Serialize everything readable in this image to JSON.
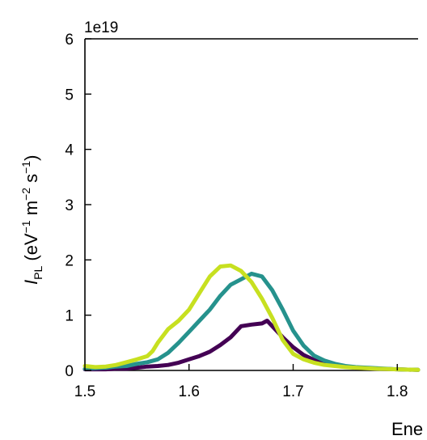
{
  "chart_data": {
    "type": "line",
    "title": "",
    "xlabel": "Ene",
    "ylabel": {
      "symbol": "I",
      "symbol_sub": "PL",
      "text": " (eV",
      "exp1": "−1",
      "mid": " m",
      "exp2": "−2",
      "end": " s",
      "exp3": "−1",
      "close": ")"
    },
    "y_offset_label": "1e19",
    "xlim": [
      1.5,
      1.82
    ],
    "ylim": [
      0,
      6
    ],
    "x_ticks": [
      1.5,
      1.6,
      1.7,
      1.8
    ],
    "x_tick_labels": [
      "1.5",
      "1.6",
      "1.7",
      "1.8"
    ],
    "y_ticks": [
      0,
      1,
      2,
      3,
      4,
      5,
      6
    ],
    "y_tick_labels": [
      "0",
      "1",
      "2",
      "3",
      "4",
      "5",
      "6"
    ],
    "grid": false,
    "legend": false,
    "series": [
      {
        "color": "#440154",
        "x": [
          1.5,
          1.51,
          1.52,
          1.53,
          1.54,
          1.55,
          1.56,
          1.57,
          1.58,
          1.59,
          1.6,
          1.61,
          1.62,
          1.63,
          1.64,
          1.65,
          1.66,
          1.67,
          1.675,
          1.68,
          1.69,
          1.7,
          1.71,
          1.72,
          1.73,
          1.74,
          1.75,
          1.76,
          1.78,
          1.8,
          1.82
        ],
        "y": [
          0.02,
          0.02,
          0.02,
          0.03,
          0.03,
          0.05,
          0.07,
          0.08,
          0.1,
          0.14,
          0.2,
          0.26,
          0.34,
          0.46,
          0.6,
          0.8,
          0.83,
          0.85,
          0.9,
          0.8,
          0.6,
          0.42,
          0.28,
          0.19,
          0.13,
          0.1,
          0.07,
          0.05,
          0.03,
          0.02,
          0.01
        ]
      },
      {
        "color": "#26928d",
        "x": [
          1.5,
          1.51,
          1.52,
          1.53,
          1.54,
          1.55,
          1.56,
          1.57,
          1.58,
          1.59,
          1.6,
          1.61,
          1.62,
          1.63,
          1.64,
          1.65,
          1.66,
          1.67,
          1.68,
          1.69,
          1.7,
          1.71,
          1.72,
          1.73,
          1.74,
          1.75,
          1.76,
          1.78,
          1.8,
          1.82
        ],
        "y": [
          0.03,
          0.04,
          0.05,
          0.07,
          0.08,
          0.12,
          0.15,
          0.2,
          0.32,
          0.5,
          0.7,
          0.9,
          1.1,
          1.35,
          1.55,
          1.65,
          1.75,
          1.7,
          1.45,
          1.1,
          0.72,
          0.45,
          0.27,
          0.18,
          0.12,
          0.08,
          0.06,
          0.04,
          0.02,
          0.01
        ]
      },
      {
        "color": "#c7e020",
        "x": [
          1.5,
          1.51,
          1.52,
          1.53,
          1.54,
          1.55,
          1.56,
          1.565,
          1.57,
          1.58,
          1.59,
          1.6,
          1.61,
          1.62,
          1.63,
          1.64,
          1.65,
          1.66,
          1.67,
          1.68,
          1.69,
          1.7,
          1.71,
          1.72,
          1.73,
          1.74,
          1.75,
          1.76,
          1.78,
          1.8,
          1.82
        ],
        "y": [
          0.08,
          0.06,
          0.07,
          0.1,
          0.15,
          0.2,
          0.26,
          0.35,
          0.5,
          0.75,
          0.9,
          1.1,
          1.4,
          1.7,
          1.88,
          1.9,
          1.8,
          1.6,
          1.3,
          0.95,
          0.55,
          0.3,
          0.2,
          0.14,
          0.1,
          0.08,
          0.06,
          0.05,
          0.03,
          0.02,
          0.01
        ]
      }
    ]
  }
}
